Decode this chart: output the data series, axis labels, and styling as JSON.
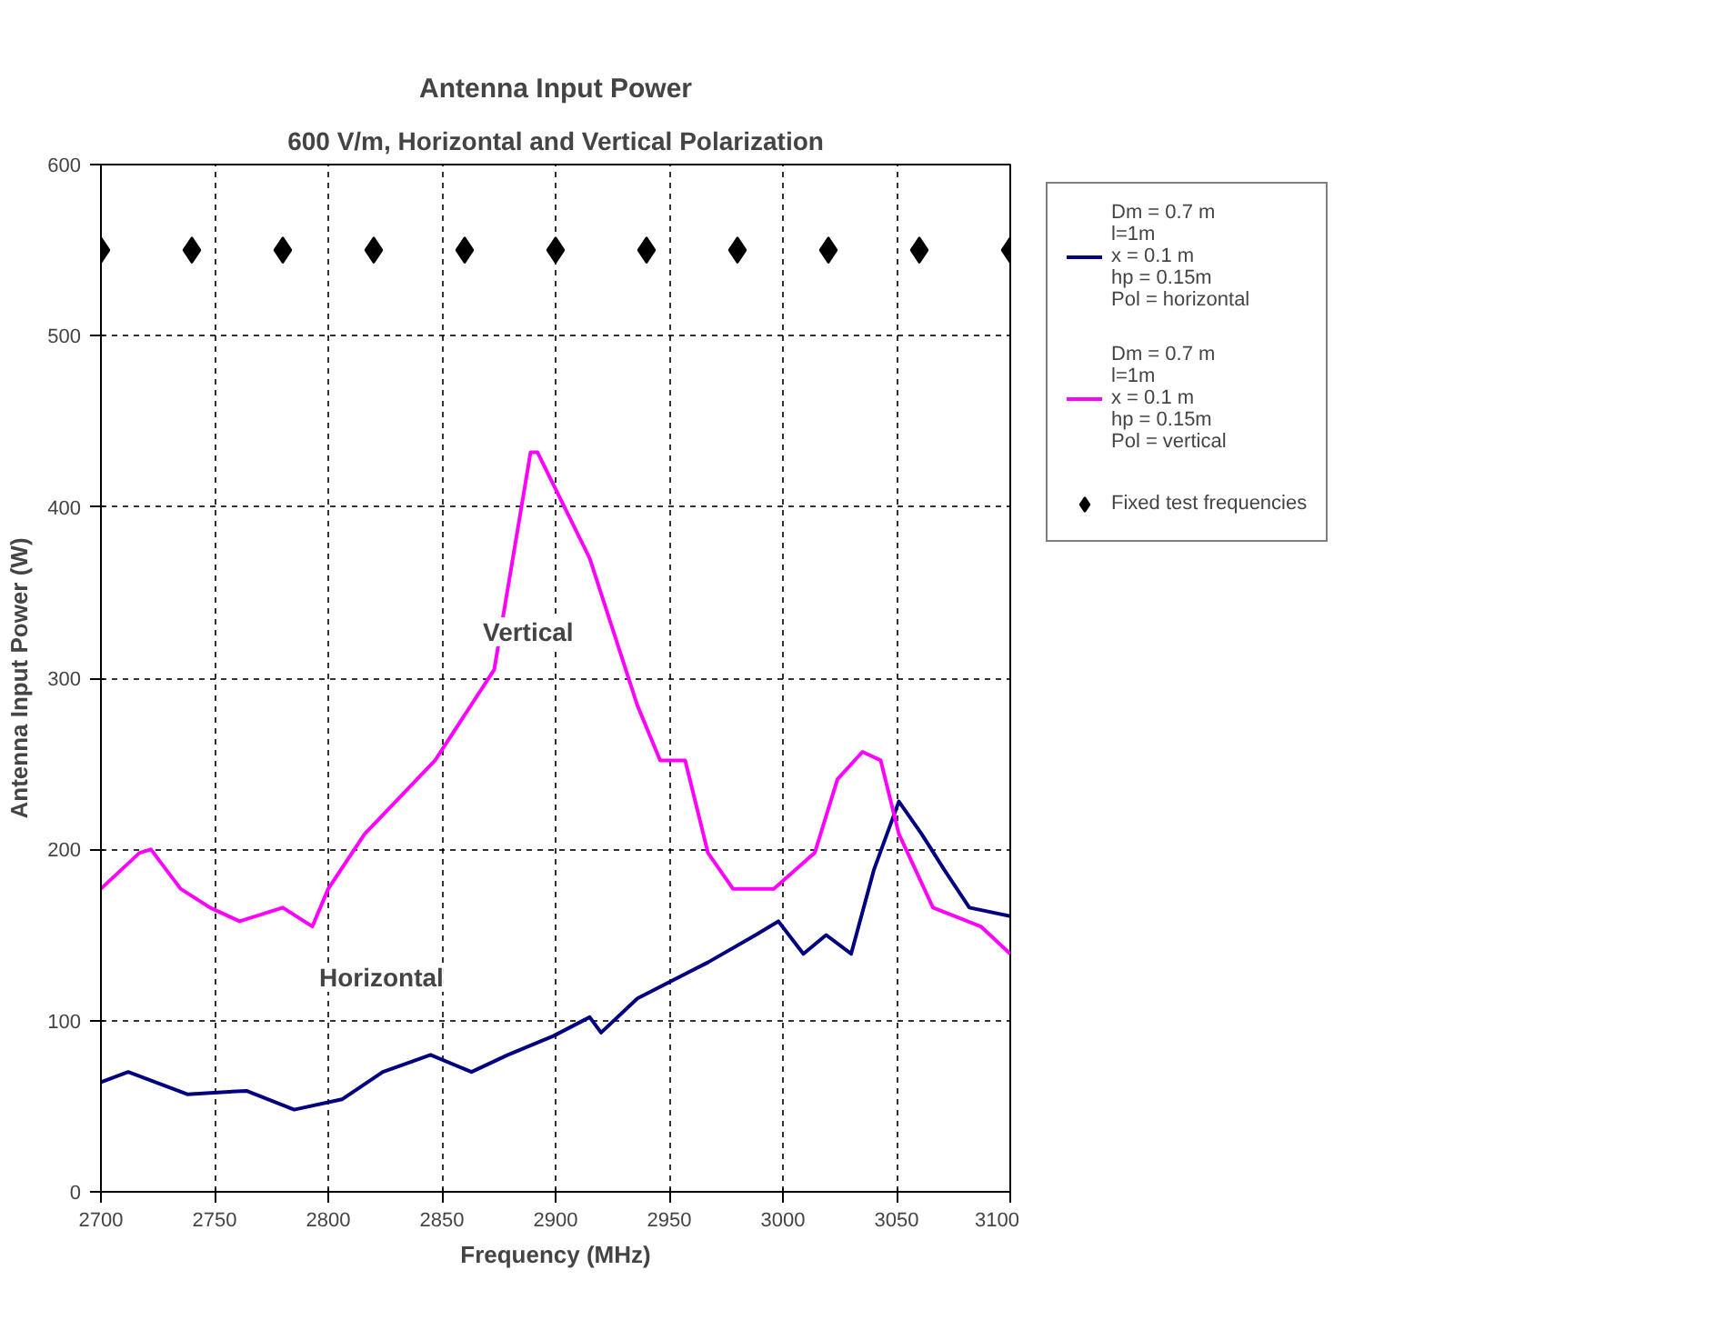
{
  "chart_data": {
    "type": "line",
    "title": "Antenna Input Power",
    "subtitle": "600 V/m, Horizontal and Vertical Polarization",
    "xlabel": "Frequency (MHz)",
    "ylabel": "Antenna Input Power (W)",
    "xlim": [
      2700,
      3100
    ],
    "xticks": [
      2700,
      2750,
      2800,
      2850,
      2900,
      2950,
      3000,
      3050,
      3100
    ],
    "ylim": [
      0,
      600
    ],
    "yticks": [
      0,
      100,
      200,
      300,
      400,
      500,
      600
    ],
    "grid": true,
    "legend": "right",
    "line_style": "solid",
    "marker": "none",
    "series": [
      {
        "name": "Dm = 0.7 m\nl=1m\nx = 0.1 m\nhp = 0.15m\nPol = horizontal",
        "color": "#000080",
        "x": [
          2700,
          2712,
          2738,
          2764,
          2785,
          2806,
          2824,
          2845,
          2863,
          2879,
          2899,
          2915,
          2920,
          2936,
          2967,
          2988,
          2998,
          3009,
          3019,
          3030,
          3040,
          3051,
          3061,
          3071,
          3082,
          3100
        ],
        "values": [
          64,
          70,
          57,
          59,
          48,
          54,
          70,
          80,
          70,
          80,
          91,
          102,
          93,
          113,
          134,
          150,
          158,
          139,
          150,
          139,
          188,
          228,
          209,
          188,
          166,
          161
        ]
      },
      {
        "name": "Dm = 0.7 m\nl=1m\nx = 0.1 m\nhp = 0.15m\nPol = vertical",
        "color": "#ff00ff",
        "x": [
          2700,
          2717,
          2722,
          2735,
          2748,
          2761,
          2780,
          2793,
          2800,
          2816,
          2847,
          2873,
          2889,
          2892,
          2915,
          2936,
          2946,
          2957,
          2967,
          2978,
          2996,
          3014,
          3024,
          3035,
          3043,
          3051,
          3066,
          3087,
          3100
        ],
        "values": [
          177,
          198,
          200,
          177,
          166,
          158,
          166,
          155,
          177,
          209,
          252,
          305,
          432,
          432,
          370,
          284,
          252,
          252,
          198,
          177,
          177,
          198,
          241,
          257,
          252,
          209,
          166,
          155,
          139
        ]
      },
      {
        "name": "Fixed test frequencies",
        "type": "scatter",
        "marker": "diamond",
        "color": "#000000",
        "x": [
          2700,
          2740,
          2780,
          2820,
          2860,
          2900,
          2940,
          2980,
          3020,
          3060,
          3100
        ],
        "values": [
          550,
          550,
          550,
          550,
          550,
          550,
          550,
          550,
          550,
          550,
          550
        ]
      }
    ],
    "annotations": [
      "Vertical",
      "Horizontal"
    ]
  }
}
